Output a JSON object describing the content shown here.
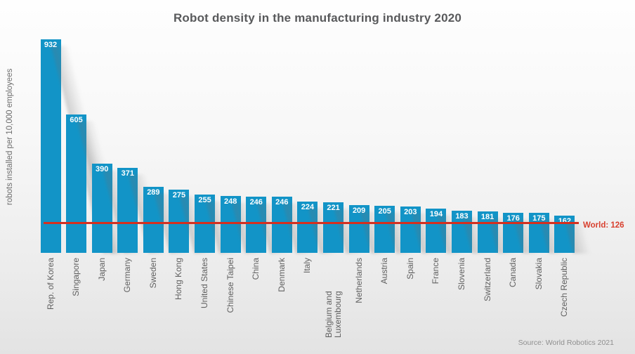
{
  "header": {
    "title": "Robot density in the manufacturing industry 2020"
  },
  "y_axis": {
    "label": "robots installed per 10,000 employees"
  },
  "footer": {
    "source": "Source: World Robotics 2021"
  },
  "chart_data": {
    "type": "bar",
    "title": "Robot density in the manufacturing industry 2020",
    "xlabel": "",
    "ylabel": "robots installed per 10,000 employees",
    "categories": [
      "Rep. of Korea",
      "Singapore",
      "Japan",
      "Germany",
      "Sweden",
      "Hong Kong",
      "United States",
      "Chinese Taipei",
      "China",
      "Denmark",
      "Italy",
      "Belgium and Luxembourg",
      "Netherlands",
      "Austria",
      "Spain",
      "France",
      "Slovenia",
      "Switzerland",
      "Canada",
      "Slovakia",
      "Czech Republic"
    ],
    "values": [
      932,
      605,
      390,
      371,
      289,
      275,
      255,
      248,
      246,
      246,
      224,
      221,
      209,
      205,
      203,
      194,
      183,
      181,
      176,
      175,
      162
    ],
    "ylim": [
      0,
      960
    ],
    "grid": false,
    "legend": "none",
    "bar_color": "#1294c7",
    "value_label_color": "#ffffff",
    "value_label_position": "inside-top",
    "reference_line": {
      "value": 126,
      "label": "World: 126",
      "color": "#d42f1f"
    },
    "source": "Source: World Robotics 2021"
  }
}
